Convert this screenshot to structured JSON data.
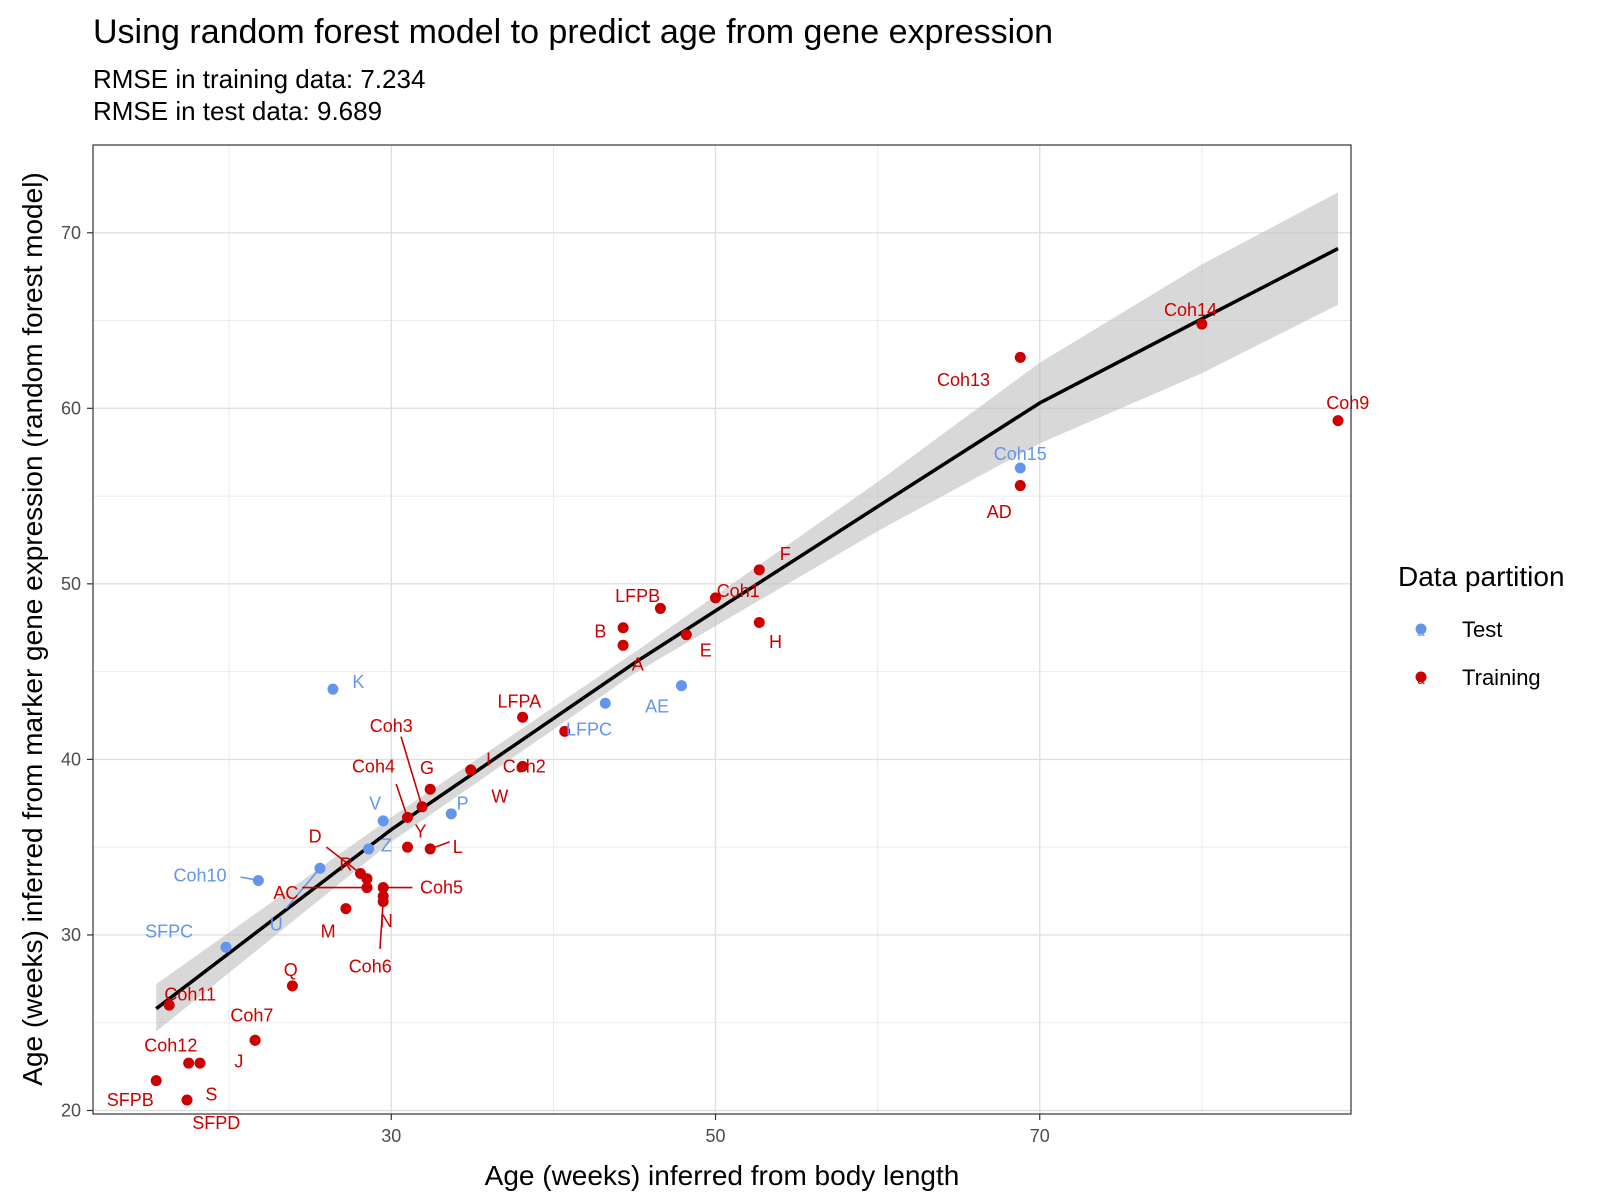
{
  "chart_data": {
    "type": "scatter",
    "title": "Using random forest model to predict age from gene expression",
    "subtitle_lines": [
      "RMSE in training data: 7.234",
      "RMSE in test data: 9.689"
    ],
    "xlabel": "Age (weeks) inferred from body length",
    "ylabel": "Age (weeks) inferred from marker gene expression (random forest model)",
    "xlim": [
      11.6,
      89.2
    ],
    "ylim": [
      19.8,
      75.0
    ],
    "x_ticks": [
      30,
      50,
      70
    ],
    "y_ticks": [
      20,
      30,
      40,
      50,
      60,
      70
    ],
    "grid": true,
    "legend": {
      "title": "Data partition",
      "placement": "right",
      "entries": [
        {
          "label": "Test",
          "color": "#6495ED"
        },
        {
          "label": "Training",
          "color": "#CC0000"
        }
      ]
    },
    "colors": {
      "Test": "#6495ED",
      "Training": "#CC0000"
    },
    "smooth_line": {
      "x": [
        15.5,
        30,
        45,
        60,
        70,
        80,
        88.4
      ],
      "y": [
        25.8,
        36.0,
        45.5,
        54.4,
        60.3,
        65.1,
        69.1
      ],
      "lower": [
        24.5,
        35.3,
        44.9,
        53.0,
        58.0,
        62.0,
        65.9
      ],
      "upper": [
        27.2,
        36.7,
        46.1,
        55.8,
        62.6,
        68.2,
        72.3
      ]
    },
    "points": [
      {
        "label": "K",
        "x": 26.4,
        "y": 44.0,
        "partition": "Test",
        "lx": 27.6,
        "ly": 44.4,
        "anchor": "start"
      },
      {
        "label": "Coh10",
        "x": 21.8,
        "y": 33.1,
        "partition": "Test",
        "lx": 18.2,
        "ly": 33.4,
        "anchor": "middle"
      },
      {
        "label": "SFPC",
        "x": 19.8,
        "y": 29.3,
        "partition": "Test",
        "lx": 16.3,
        "ly": 30.2,
        "anchor": "middle"
      },
      {
        "label": "U",
        "x": 25.6,
        "y": 33.8,
        "partition": "Test",
        "lx": 22.9,
        "ly": 30.6,
        "anchor": "middle"
      },
      {
        "label": "V",
        "x": 29.5,
        "y": 36.5,
        "partition": "Test",
        "lx": 29.0,
        "ly": 37.5,
        "anchor": "middle"
      },
      {
        "label": "Z",
        "x": 28.6,
        "y": 34.9,
        "partition": "Test",
        "lx": 29.7,
        "ly": 35.1,
        "anchor": "middle"
      },
      {
        "label": "P",
        "x": 33.7,
        "y": 36.9,
        "partition": "Test",
        "lx": 34.4,
        "ly": 37.5,
        "anchor": "middle"
      },
      {
        "label": "LFPC",
        "x": 43.2,
        "y": 43.2,
        "partition": "Test",
        "lx": 42.2,
        "ly": 41.7,
        "anchor": "middle"
      },
      {
        "label": "AE",
        "x": 47.9,
        "y": 44.2,
        "partition": "Test",
        "lx": 46.4,
        "ly": 43.0,
        "anchor": "middle"
      },
      {
        "label": "Coh15",
        "x": 68.8,
        "y": 56.6,
        "partition": "Test",
        "lx": 68.8,
        "ly": 57.4,
        "anchor": "middle"
      },
      {
        "label": "Coh14",
        "x": 80.0,
        "y": 64.8,
        "partition": "Training",
        "lx": 79.3,
        "ly": 65.6,
        "anchor": "middle"
      },
      {
        "label": "Coh13",
        "x": 68.8,
        "y": 62.9,
        "partition": "Training",
        "lx": 65.3,
        "ly": 61.6,
        "anchor": "middle"
      },
      {
        "label": "Coh9",
        "x": 88.4,
        "y": 59.3,
        "partition": "Training",
        "lx": 89.0,
        "ly": 60.3,
        "anchor": "middle"
      },
      {
        "label": "AD",
        "x": 68.8,
        "y": 55.6,
        "partition": "Training",
        "lx": 67.5,
        "ly": 54.1,
        "anchor": "middle"
      },
      {
        "label": "F",
        "x": 52.7,
        "y": 50.8,
        "partition": "Training",
        "lx": 54.3,
        "ly": 51.7,
        "anchor": "middle"
      },
      {
        "label": "Coh1",
        "x": 50.0,
        "y": 49.2,
        "partition": "Training",
        "lx": 51.4,
        "ly": 49.6,
        "anchor": "middle"
      },
      {
        "label": "LFPB",
        "x": 46.6,
        "y": 48.6,
        "partition": "Training",
        "lx": 45.2,
        "ly": 49.3,
        "anchor": "middle"
      },
      {
        "label": "H",
        "x": 52.7,
        "y": 47.8,
        "partition": "Training",
        "lx": 53.7,
        "ly": 46.7,
        "anchor": "middle"
      },
      {
        "label": "B",
        "x": 44.3,
        "y": 47.5,
        "partition": "Training",
        "lx": 42.9,
        "ly": 47.3,
        "anchor": "middle"
      },
      {
        "label": "E",
        "x": 48.2,
        "y": 47.1,
        "partition": "Training",
        "lx": 49.4,
        "ly": 46.2,
        "anchor": "middle"
      },
      {
        "label": "A",
        "x": 44.3,
        "y": 46.5,
        "partition": "Training",
        "lx": 45.2,
        "ly": 45.4,
        "anchor": "middle"
      },
      {
        "label": "LFPA",
        "x": 38.1,
        "y": 42.4,
        "partition": "Training",
        "lx": 37.9,
        "ly": 43.3,
        "anchor": "middle"
      },
      {
        "label": "Coh2",
        "x": 40.7,
        "y": 41.6,
        "partition": "Training",
        "lx": 38.2,
        "ly": 39.6,
        "anchor": "middle"
      },
      {
        "label": "I",
        "x": 34.9,
        "y": 39.4,
        "partition": "Training",
        "lx": 36.0,
        "ly": 40.0,
        "anchor": "middle"
      },
      {
        "label": "W",
        "x": 38.1,
        "y": 39.6,
        "partition": "Training",
        "lx": 36.7,
        "ly": 37.9,
        "anchor": "middle"
      },
      {
        "label": "G",
        "x": 32.4,
        "y": 38.3,
        "partition": "Training",
        "lx": 32.2,
        "ly": 39.5,
        "anchor": "middle"
      },
      {
        "label": "Coh3",
        "x": 31.9,
        "y": 37.3,
        "partition": "Training",
        "lx": 30.0,
        "ly": 41.9,
        "anchor": "middle"
      },
      {
        "label": "Coh4",
        "x": 31.0,
        "y": 36.7,
        "partition": "Training",
        "lx": 28.9,
        "ly": 39.6,
        "anchor": "middle"
      },
      {
        "label": "Y",
        "x": 31.0,
        "y": 35.0,
        "partition": "Training",
        "lx": 31.8,
        "ly": 35.9,
        "anchor": "middle"
      },
      {
        "label": "L",
        "x": 32.4,
        "y": 34.9,
        "partition": "Training",
        "lx": 34.1,
        "ly": 35.0,
        "anchor": "middle"
      },
      {
        "label": "D",
        "x": 28.1,
        "y": 33.5,
        "partition": "Training",
        "lx": 25.3,
        "ly": 35.6,
        "anchor": "middle"
      },
      {
        "label": "R",
        "x": 28.5,
        "y": 33.2,
        "partition": "Training",
        "lx": 27.2,
        "ly": 34.0,
        "anchor": "middle"
      },
      {
        "label": "AC",
        "x": 28.5,
        "y": 32.7,
        "partition": "Training",
        "lx": 23.5,
        "ly": 32.4,
        "anchor": "middle"
      },
      {
        "label": "Coh5",
        "x": 29.5,
        "y": 32.7,
        "partition": "Training",
        "lx": 33.1,
        "ly": 32.7,
        "anchor": "middle"
      },
      {
        "label": "N",
        "x": 29.5,
        "y": 32.2,
        "partition": "Training",
        "lx": 29.7,
        "ly": 30.8,
        "anchor": "middle"
      },
      {
        "label": "Coh6",
        "x": 29.5,
        "y": 31.9,
        "partition": "Training",
        "lx": 28.7,
        "ly": 28.2,
        "anchor": "middle"
      },
      {
        "label": "M",
        "x": 27.2,
        "y": 31.5,
        "partition": "Training",
        "lx": 26.1,
        "ly": 30.2,
        "anchor": "middle"
      },
      {
        "label": "Q",
        "x": 23.9,
        "y": 27.1,
        "partition": "Training",
        "lx": 23.8,
        "ly": 28.0,
        "anchor": "middle"
      },
      {
        "label": "Coh7",
        "x": 21.6,
        "y": 24.0,
        "partition": "Training",
        "lx": 21.4,
        "ly": 25.4,
        "anchor": "middle"
      },
      {
        "label": "J",
        "x": 21.6,
        "y": 24.0,
        "partition": "Training",
        "lx": 20.6,
        "ly": 22.8,
        "anchor": "middle"
      },
      {
        "label": "Coh11",
        "x": 16.3,
        "y": 26.0,
        "partition": "Training",
        "lx": 17.6,
        "ly": 26.6,
        "anchor": "middle"
      },
      {
        "label": "Coh12",
        "x": 17.5,
        "y": 22.7,
        "partition": "Training",
        "lx": 16.4,
        "ly": 23.7,
        "anchor": "middle"
      },
      {
        "label": "S",
        "x": 18.2,
        "y": 22.7,
        "partition": "Training",
        "lx": 18.9,
        "ly": 20.9,
        "anchor": "middle"
      },
      {
        "label": "SFPB",
        "x": 15.5,
        "y": 21.7,
        "partition": "Training",
        "lx": 13.9,
        "ly": 20.6,
        "anchor": "middle"
      },
      {
        "label": "SFPD",
        "x": 17.4,
        "y": 20.6,
        "partition": "Training",
        "lx": 19.2,
        "ly": 19.3,
        "anchor": "middle"
      }
    ],
    "leaders": [
      {
        "x1": 21.8,
        "y1": 33.1,
        "x2": 20.7,
        "y2": 33.3,
        "partition": "Test"
      },
      {
        "x1": 25.6,
        "y1": 33.8,
        "x2": 23.5,
        "y2": 31.5,
        "partition": "Test"
      },
      {
        "x1": 31.9,
        "y1": 37.3,
        "x2": 30.6,
        "y2": 41.3,
        "partition": "Training"
      },
      {
        "x1": 31.0,
        "y1": 36.7,
        "x2": 30.3,
        "y2": 38.6,
        "partition": "Training"
      },
      {
        "x1": 32.4,
        "y1": 34.9,
        "x2": 33.6,
        "y2": 35.3,
        "partition": "Training"
      },
      {
        "x1": 28.1,
        "y1": 33.5,
        "x2": 26.0,
        "y2": 35.0,
        "partition": "Training"
      },
      {
        "x1": 28.5,
        "y1": 32.7,
        "x2": 24.5,
        "y2": 32.7,
        "partition": "Training"
      },
      {
        "x1": 29.5,
        "y1": 32.7,
        "x2": 31.3,
        "y2": 32.7,
        "partition": "Training"
      },
      {
        "x1": 29.5,
        "y1": 31.9,
        "x2": 29.3,
        "y2": 29.2,
        "partition": "Training"
      }
    ]
  }
}
